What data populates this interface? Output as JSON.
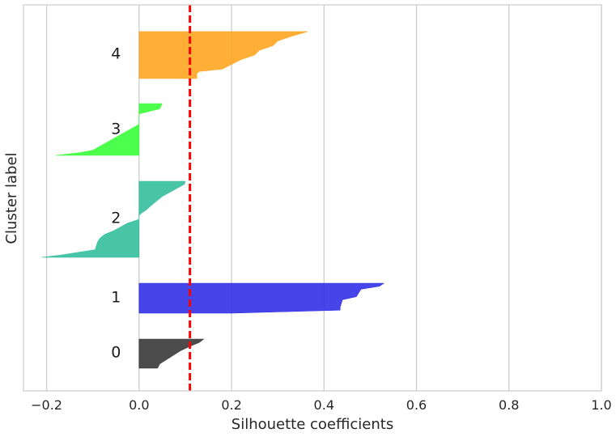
{
  "chart_data": {
    "type": "area",
    "title": "",
    "xlabel": "Silhouette coefficients",
    "ylabel": "Cluster label",
    "xlim": [
      -0.25,
      1.0
    ],
    "xticks": [
      -0.2,
      0.0,
      0.2,
      0.4,
      0.6,
      0.8,
      1.0
    ],
    "xtick_labels": [
      "−0.2",
      "0.0",
      "0.2",
      "0.4",
      "0.6",
      "0.8",
      "1.0"
    ],
    "grid": "vertical",
    "reference_line": {
      "x": 0.11,
      "color": "#ff0000",
      "style": "dashed"
    },
    "clusters": [
      {
        "label": "0",
        "color": "#333333",
        "profile": [
          [
            0.0,
            0.14
          ],
          [
            0.12,
            0.13
          ],
          [
            0.25,
            0.11
          ],
          [
            0.4,
            0.09
          ],
          [
            0.55,
            0.075
          ],
          [
            0.7,
            0.06
          ],
          [
            0.85,
            0.045
          ],
          [
            1.0,
            0.04
          ]
        ]
      },
      {
        "label": "1",
        "color": "#2b2be6",
        "profile": [
          [
            0.0,
            0.53
          ],
          [
            0.1,
            0.52
          ],
          [
            0.2,
            0.48
          ],
          [
            0.45,
            0.47
          ],
          [
            0.55,
            0.44
          ],
          [
            0.8,
            0.435
          ],
          [
            0.9,
            0.435
          ],
          [
            1.0,
            0.2
          ]
        ]
      },
      {
        "label": "2",
        "color": "#2ebd9a",
        "profile": [
          [
            0.0,
            0.1
          ],
          [
            0.04,
            0.098
          ],
          [
            0.1,
            0.08
          ],
          [
            0.2,
            0.05
          ],
          [
            0.3,
            0.03
          ],
          [
            0.38,
            0.015
          ],
          [
            0.42,
            0.005
          ],
          [
            0.45,
            0.0
          ],
          [
            0.5,
            0.0
          ],
          [
            0.52,
            -0.01
          ],
          [
            0.55,
            -0.025
          ],
          [
            0.6,
            -0.04
          ],
          [
            0.65,
            -0.055
          ],
          [
            0.7,
            -0.075
          ],
          [
            0.75,
            -0.085
          ],
          [
            0.8,
            -0.09
          ],
          [
            0.9,
            -0.095
          ],
          [
            0.97,
            -0.17
          ],
          [
            1.0,
            -0.21
          ]
        ]
      },
      {
        "label": "3",
        "color": "#33ff33",
        "profile": [
          [
            0.0,
            0.05
          ],
          [
            0.1,
            0.045
          ],
          [
            0.2,
            0.0
          ],
          [
            0.4,
            0.0
          ],
          [
            0.5,
            -0.02
          ],
          [
            0.6,
            -0.04
          ],
          [
            0.7,
            -0.06
          ],
          [
            0.8,
            -0.08
          ],
          [
            0.85,
            -0.09
          ],
          [
            0.9,
            -0.1
          ],
          [
            0.95,
            -0.13
          ],
          [
            1.0,
            -0.18
          ]
        ]
      },
      {
        "label": "4",
        "color": "#ffa31a",
        "profile": [
          [
            0.0,
            0.365
          ],
          [
            0.1,
            0.33
          ],
          [
            0.2,
            0.3
          ],
          [
            0.3,
            0.29
          ],
          [
            0.4,
            0.26
          ],
          [
            0.5,
            0.25
          ],
          [
            0.6,
            0.22
          ],
          [
            0.7,
            0.2
          ],
          [
            0.8,
            0.18
          ],
          [
            0.85,
            0.13
          ],
          [
            0.9,
            0.125
          ],
          [
            1.0,
            0.125
          ]
        ]
      }
    ]
  }
}
